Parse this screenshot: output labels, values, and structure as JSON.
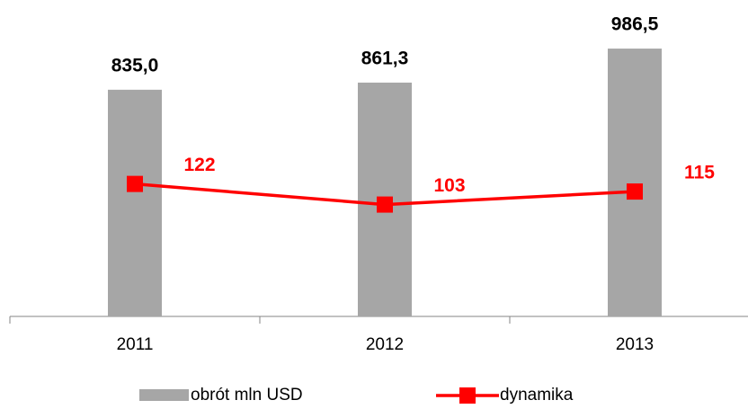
{
  "chart_data": {
    "type": "bar_line",
    "categories": [
      "2011",
      "2012",
      "2013"
    ],
    "series": [
      {
        "name": "obrót mln USD",
        "type": "bar",
        "color": "#a6a6a6",
        "values": [
          835.0,
          861.3,
          986.5
        ],
        "value_labels": [
          "835,0",
          "861,3",
          "986,5"
        ]
      },
      {
        "name": "dynamika",
        "type": "line",
        "axis": "y2",
        "color": "#ff0000",
        "values": [
          122,
          103,
          115
        ]
      }
    ],
    "ylim": [
      0,
      1000
    ],
    "y2lim": [
      0,
      250
    ],
    "legend": "bottom"
  }
}
